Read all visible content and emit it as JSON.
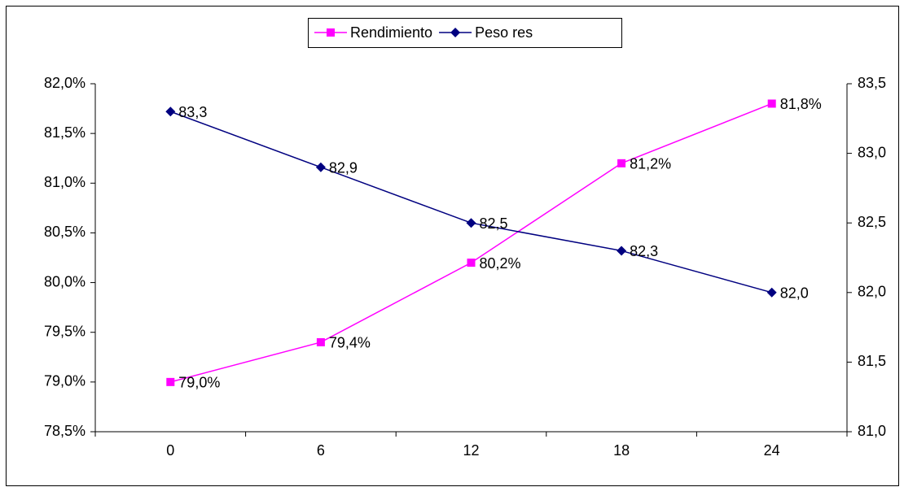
{
  "chart_data": {
    "type": "line",
    "categories": [
      "0",
      "6",
      "12",
      "18",
      "24"
    ],
    "series": [
      {
        "name": "Rendimiento",
        "color": "#ff00ff",
        "marker": "square",
        "values": [
          79.0,
          79.4,
          80.2,
          81.2,
          81.8
        ],
        "value_labels": [
          "79,0%",
          "79,4%",
          "80,2%",
          "81,2%",
          "81,8%"
        ]
      },
      {
        "name": "Peso res",
        "color": "#000080",
        "marker": "diamond",
        "axis": "y2",
        "values": [
          83.3,
          82.9,
          82.5,
          82.3,
          82.0
        ],
        "value_labels": [
          "83,3",
          "82,9",
          "82,5",
          "82,3",
          "82,0"
        ]
      }
    ],
    "ylim": [
      78.5,
      82.0
    ],
    "yticks": [
      {
        "value": 78.5,
        "label": "78,5%"
      },
      {
        "value": 79.0,
        "label": "79,0%"
      },
      {
        "value": 79.5,
        "label": "79,5%"
      },
      {
        "value": 80.0,
        "label": "80,0%"
      },
      {
        "value": 80.5,
        "label": "80,5%"
      },
      {
        "value": 81.0,
        "label": "81,0%"
      },
      {
        "value": 81.5,
        "label": "81,5%"
      },
      {
        "value": 82.0,
        "label": "82,0%"
      }
    ],
    "y2lim": [
      81.0,
      83.5
    ],
    "y2ticks": [
      {
        "value": 81.0,
        "label": "81,0"
      },
      {
        "value": 81.5,
        "label": "81,5"
      },
      {
        "value": 82.0,
        "label": "82,0"
      },
      {
        "value": 82.5,
        "label": "82,5"
      },
      {
        "value": 83.0,
        "label": "83,0"
      },
      {
        "value": 83.5,
        "label": "83,5"
      }
    ],
    "legend": "top",
    "grid": false
  }
}
